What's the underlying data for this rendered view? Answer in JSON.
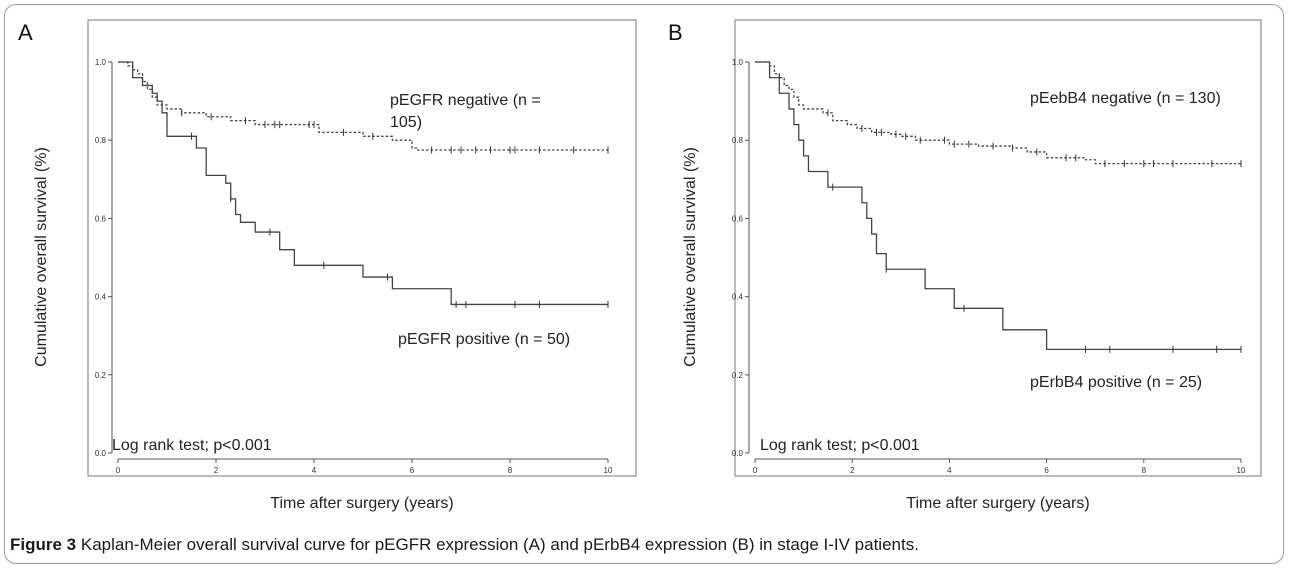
{
  "caption": {
    "label": "Figure 3",
    "text": "Kaplan-Meier overall survival curve for pEGFR expression (A) and pErbB4 expression (B) in stage I-IV patients."
  },
  "chart_data": [
    {
      "type": "line",
      "panel": "A",
      "xlabel": "Time after surgery (years)",
      "ylabel": "Cumulative overall survival (%)",
      "xlim": [
        0,
        10
      ],
      "ylim": [
        0,
        1.0
      ],
      "xticks": [
        0,
        2,
        4,
        6,
        8,
        10
      ],
      "yticks": [
        0.0,
        0.2,
        0.4,
        0.6,
        0.8,
        1.0
      ],
      "ytick_labels": [
        "0.0",
        "0.2",
        "0.4",
        "0.6",
        "0.8",
        "1.0"
      ],
      "grid": false,
      "annotation": "Log rank test; p<0.001",
      "series": [
        {
          "name": "pEGFR negative (n = 105)",
          "label_lines": [
            "pEGFR negative (n =",
            "105)"
          ],
          "style": "dotted",
          "steps": [
            [
              0,
              1.0
            ],
            [
              0.2,
              0.99
            ],
            [
              0.3,
              0.98
            ],
            [
              0.4,
              0.97
            ],
            [
              0.5,
              0.95
            ],
            [
              0.6,
              0.93
            ],
            [
              0.7,
              0.91
            ],
            [
              0.8,
              0.89
            ],
            [
              1.0,
              0.88
            ],
            [
              1.3,
              0.87
            ],
            [
              1.8,
              0.86
            ],
            [
              2.3,
              0.85
            ],
            [
              2.8,
              0.84
            ],
            [
              3.3,
              0.84
            ],
            [
              4.1,
              0.82
            ],
            [
              5.0,
              0.81
            ],
            [
              5.6,
              0.8
            ],
            [
              6.0,
              0.78
            ],
            [
              6.1,
              0.775
            ],
            [
              10.0,
              0.775
            ]
          ],
          "censored": [
            0.5,
            1.3,
            1.9,
            2.6,
            3.0,
            3.2,
            3.3,
            3.9,
            4.0,
            4.6,
            5.2,
            6.4,
            6.8,
            7.0,
            7.3,
            7.6,
            8.0,
            8.1,
            8.6,
            9.3,
            10.0
          ]
        },
        {
          "name": "pEGFR positive (n = 50)",
          "label_lines": [
            "pEGFR positive (n = 50)"
          ],
          "style": "solid",
          "steps": [
            [
              0,
              1.0
            ],
            [
              0.3,
              0.96
            ],
            [
              0.5,
              0.94
            ],
            [
              0.7,
              0.92
            ],
            [
              0.8,
              0.9
            ],
            [
              0.9,
              0.87
            ],
            [
              1.0,
              0.81
            ],
            [
              1.6,
              0.78
            ],
            [
              1.8,
              0.71
            ],
            [
              2.2,
              0.69
            ],
            [
              2.3,
              0.65
            ],
            [
              2.4,
              0.61
            ],
            [
              2.5,
              0.59
            ],
            [
              2.8,
              0.565
            ],
            [
              3.3,
              0.52
            ],
            [
              3.6,
              0.48
            ],
            [
              4.1,
              0.48
            ],
            [
              5.0,
              0.45
            ],
            [
              5.6,
              0.42
            ],
            [
              6.0,
              0.42
            ],
            [
              6.8,
              0.38
            ],
            [
              10.0,
              0.38
            ]
          ],
          "censored": [
            1.5,
            2.3,
            3.1,
            4.2,
            5.5,
            6.9,
            7.1,
            8.1,
            8.6,
            10.0
          ]
        }
      ]
    },
    {
      "type": "line",
      "panel": "B",
      "xlabel": "Time after surgery (years)",
      "ylabel": "Cumulative overall survival (%)",
      "xlim": [
        0,
        10
      ],
      "ylim": [
        0,
        1.0
      ],
      "xticks": [
        0,
        2,
        4,
        6,
        8,
        10
      ],
      "yticks": [
        0.0,
        0.2,
        0.4,
        0.6,
        0.8,
        1.0
      ],
      "ytick_labels": [
        "0.0",
        "0.2",
        "0.4",
        "0.6",
        "0.8",
        "1.0"
      ],
      "grid": false,
      "annotation": "Log rank test; p<0.001",
      "series": [
        {
          "name": "pEebB4 negative (n = 130)",
          "label_lines": [
            "pEebB4 negative (n = 130)"
          ],
          "style": "dotted",
          "steps": [
            [
              0,
              1.0
            ],
            [
              0.3,
              0.99
            ],
            [
              0.4,
              0.97
            ],
            [
              0.5,
              0.96
            ],
            [
              0.6,
              0.94
            ],
            [
              0.7,
              0.93
            ],
            [
              0.8,
              0.91
            ],
            [
              0.9,
              0.89
            ],
            [
              1.0,
              0.88
            ],
            [
              1.4,
              0.87
            ],
            [
              1.6,
              0.85
            ],
            [
              1.9,
              0.84
            ],
            [
              2.1,
              0.83
            ],
            [
              2.4,
              0.82
            ],
            [
              2.8,
              0.815
            ],
            [
              3.0,
              0.81
            ],
            [
              3.3,
              0.8
            ],
            [
              4.0,
              0.79
            ],
            [
              4.6,
              0.785
            ],
            [
              5.3,
              0.78
            ],
            [
              5.6,
              0.77
            ],
            [
              6.0,
              0.755
            ],
            [
              6.8,
              0.75
            ],
            [
              7.0,
              0.74
            ],
            [
              10.0,
              0.74
            ]
          ],
          "censored": [
            0.5,
            1.5,
            2.2,
            2.5,
            2.6,
            2.9,
            3.1,
            3.4,
            3.9,
            4.1,
            4.4,
            4.9,
            5.3,
            5.8,
            6.4,
            6.6,
            7.2,
            7.6,
            8.0,
            8.2,
            8.6,
            9.4,
            10.0
          ]
        },
        {
          "name": "pErbB4 positive (n = 25)",
          "label_lines": [
            "pErbB4 positive (n = 25)"
          ],
          "style": "solid",
          "steps": [
            [
              0,
              1.0
            ],
            [
              0.3,
              0.96
            ],
            [
              0.5,
              0.92
            ],
            [
              0.7,
              0.88
            ],
            [
              0.8,
              0.84
            ],
            [
              0.9,
              0.8
            ],
            [
              1.0,
              0.76
            ],
            [
              1.1,
              0.72
            ],
            [
              1.5,
              0.68
            ],
            [
              2.2,
              0.64
            ],
            [
              2.3,
              0.6
            ],
            [
              2.4,
              0.56
            ],
            [
              2.5,
              0.51
            ],
            [
              2.7,
              0.47
            ],
            [
              3.5,
              0.42
            ],
            [
              4.1,
              0.37
            ],
            [
              5.1,
              0.315
            ],
            [
              6.0,
              0.265
            ],
            [
              10.0,
              0.265
            ]
          ],
          "censored": [
            1.6,
            2.7,
            4.3,
            6.8,
            7.3,
            8.6,
            9.5,
            10.0
          ]
        }
      ]
    }
  ]
}
